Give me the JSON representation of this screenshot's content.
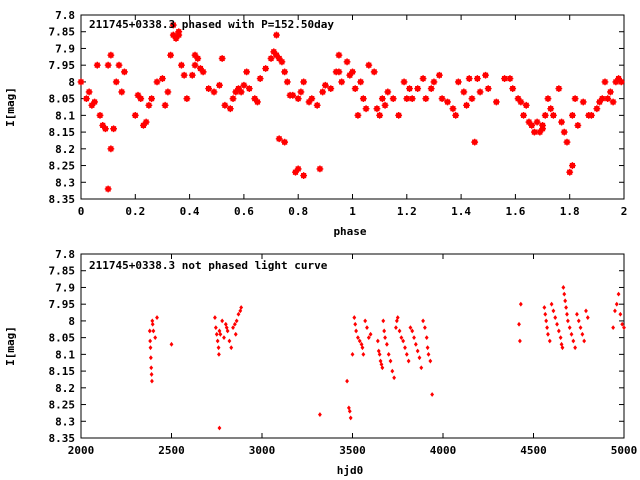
{
  "chart_data": [
    {
      "type": "scatter",
      "title": "211745+0338.3 phased with P=152.50day",
      "xlabel": "phase",
      "ylabel": "I[mag]",
      "xlim": [
        0,
        2
      ],
      "ylim": [
        8.35,
        7.8
      ],
      "y_inverted": true,
      "x_ticks": [
        "0",
        "0.2",
        "0.4",
        "0.6",
        "0.8",
        "1",
        "1.2",
        "1.4",
        "1.6",
        "1.8",
        "2"
      ],
      "y_ticks": [
        "7.8",
        "7.85",
        "7.9",
        "7.95",
        "8",
        "8.05",
        "8.1",
        "8.15",
        "8.2",
        "8.25",
        "8.3",
        "8.35"
      ],
      "grid": false,
      "marker": "filled-star",
      "color": "#ff0000",
      "series": [
        {
          "x": [
            0.0,
            0.02,
            0.03,
            0.04,
            0.05,
            0.06,
            0.07,
            0.08,
            0.09,
            0.1,
            0.11,
            0.12,
            0.13,
            0.14,
            0.15,
            0.16,
            0.2,
            0.21,
            0.22,
            0.23,
            0.24,
            0.26,
            0.28,
            0.3,
            0.31,
            0.32,
            0.33,
            0.34,
            0.35,
            0.36,
            0.37,
            0.38,
            0.39,
            0.41,
            0.42,
            0.43,
            0.44,
            0.45,
            0.47,
            0.49,
            0.51,
            0.52,
            0.53,
            0.55,
            0.56,
            0.57,
            0.58,
            0.59,
            0.6,
            0.61,
            0.62,
            0.64,
            0.65,
            0.66,
            0.68,
            0.7,
            0.71,
            0.72,
            0.73,
            0.74,
            0.75,
            0.76,
            0.77,
            0.78,
            0.8,
            0.81,
            0.82,
            0.84,
            0.85,
            0.87,
            0.89,
            0.9,
            0.92,
            0.94,
            0.95,
            0.96,
            0.98,
            0.99,
            1.0,
            1.01,
            1.03,
            1.04,
            1.06,
            1.08,
            1.09,
            1.1,
            1.11,
            1.12,
            1.13,
            1.15,
            1.17,
            1.19,
            1.2,
            1.21,
            1.22,
            1.24,
            1.26,
            1.27,
            1.29,
            1.3,
            1.32,
            1.33,
            1.35,
            1.37,
            1.38,
            1.39,
            1.41,
            1.42,
            1.44,
            1.46,
            1.47,
            1.49,
            1.5,
            1.53,
            1.56,
            1.58,
            1.59,
            1.61,
            1.62,
            1.63,
            1.64,
            1.65,
            1.66,
            1.67,
            1.68,
            1.69,
            1.7,
            1.71,
            1.72,
            1.73,
            1.74,
            1.76,
            1.77,
            1.78,
            1.79,
            1.8,
            1.81,
            1.82,
            1.83,
            1.85,
            1.87,
            1.88,
            1.9,
            1.91,
            1.92,
            1.93,
            1.94,
            1.95,
            1.96,
            1.97,
            1.98,
            1.99,
            0.1,
            0.11,
            0.72,
            0.73,
            0.75,
            0.79,
            0.8,
            0.82,
            0.88,
            1.7,
            1.81,
            0.34,
            0.36,
            1.02,
            1.05,
            1.43,
            1.45,
            0.95,
            0.25,
            0.42
          ],
          "y": [
            8.0,
            8.05,
            8.03,
            8.07,
            8.06,
            7.95,
            8.1,
            8.13,
            8.14,
            7.95,
            7.92,
            8.14,
            8.0,
            7.95,
            8.03,
            7.97,
            8.1,
            8.04,
            8.05,
            8.13,
            8.12,
            8.05,
            8.0,
            7.99,
            8.07,
            8.03,
            7.92,
            7.86,
            7.87,
            7.86,
            7.95,
            7.98,
            8.05,
            7.98,
            7.95,
            7.93,
            7.96,
            7.97,
            8.02,
            8.03,
            8.01,
            7.93,
            8.07,
            8.08,
            8.05,
            8.03,
            8.02,
            8.03,
            8.01,
            7.97,
            8.02,
            8.05,
            8.06,
            7.99,
            7.96,
            7.93,
            7.91,
            7.92,
            7.93,
            7.94,
            7.97,
            8.0,
            8.04,
            8.04,
            8.05,
            8.03,
            8.0,
            8.06,
            8.05,
            8.07,
            8.03,
            8.01,
            8.02,
            7.97,
            7.97,
            8.0,
            7.94,
            7.98,
            7.97,
            8.02,
            8.0,
            8.05,
            7.95,
            7.97,
            8.08,
            8.1,
            8.05,
            8.07,
            8.03,
            8.05,
            8.1,
            8.0,
            8.05,
            8.02,
            8.05,
            8.02,
            7.99,
            8.05,
            8.02,
            8.0,
            7.98,
            8.05,
            8.06,
            8.08,
            8.1,
            8.0,
            8.03,
            8.07,
            8.05,
            7.99,
            8.03,
            7.98,
            8.02,
            8.06,
            7.99,
            7.99,
            8.02,
            8.05,
            8.06,
            8.1,
            8.07,
            8.12,
            8.13,
            8.15,
            8.12,
            8.15,
            8.13,
            8.1,
            8.05,
            8.08,
            8.1,
            8.02,
            8.12,
            8.15,
            8.18,
            8.27,
            8.1,
            8.05,
            8.13,
            8.06,
            8.1,
            8.1,
            8.08,
            8.06,
            8.05,
            8.0,
            8.05,
            8.03,
            8.06,
            8.0,
            7.99,
            8.0,
            8.32,
            8.2,
            7.86,
            8.17,
            8.18,
            8.27,
            8.26,
            8.28,
            8.26,
            8.14,
            8.25,
            7.83,
            7.85,
            8.1,
            8.08,
            7.99,
            8.18,
            7.92,
            8.07,
            7.92
          ]
        }
      ]
    },
    {
      "type": "scatter",
      "title": "211745+0338.3 not phased light curve",
      "xlabel": "hjd0",
      "ylabel": "I[mag]",
      "xlim": [
        2000,
        5000
      ],
      "ylim": [
        8.35,
        7.8
      ],
      "y_inverted": true,
      "x_ticks": [
        "2000",
        "2500",
        "3000",
        "3500",
        "4000",
        "4500",
        "5000"
      ],
      "y_ticks": [
        "7.8",
        "7.85",
        "7.9",
        "7.95",
        "8",
        "8.05",
        "8.1",
        "8.15",
        "8.2",
        "8.25",
        "8.3",
        "8.35"
      ],
      "grid": false,
      "marker": "filled-diamond",
      "color": "#ff0000",
      "series": [
        {
          "x": [
            2380,
            2382,
            2384,
            2386,
            2388,
            2390,
            2392,
            2394,
            2396,
            2400,
            2410,
            2420,
            2500,
            2740,
            2745,
            2750,
            2755,
            2760,
            2762,
            2765,
            2770,
            2780,
            2790,
            2800,
            2805,
            2810,
            2820,
            2830,
            2840,
            2850,
            2855,
            2860,
            2870,
            2880,
            2885,
            2765,
            3320,
            3470,
            3480,
            3485,
            3490,
            3500,
            3510,
            3515,
            3520,
            3530,
            3540,
            3550,
            3555,
            3560,
            3570,
            3580,
            3590,
            3600,
            3640,
            3645,
            3650,
            3655,
            3660,
            3665,
            3670,
            3675,
            3680,
            3690,
            3700,
            3710,
            3720,
            3730,
            3740,
            3745,
            3750,
            3760,
            3770,
            3780,
            3790,
            3800,
            3810,
            3820,
            3830,
            3840,
            3850,
            3860,
            3870,
            3880,
            3890,
            3900,
            3910,
            3915,
            3920,
            3930,
            3940,
            4420,
            4425,
            4430,
            4560,
            4565,
            4570,
            4575,
            4580,
            4590,
            4600,
            4610,
            4620,
            4630,
            4640,
            4650,
            4655,
            4660,
            4665,
            4670,
            4675,
            4680,
            4685,
            4690,
            4700,
            4710,
            4720,
            4730,
            4740,
            4750,
            4760,
            4770,
            4780,
            4790,
            4800,
            4940,
            4950,
            4960,
            4970,
            4980,
            4990,
            5000
          ],
          "y": [
            8.03,
            8.06,
            8.08,
            8.11,
            8.14,
            8.16,
            8.18,
            8.0,
            8.01,
            8.03,
            8.05,
            7.99,
            8.07,
            7.99,
            8.02,
            8.04,
            8.06,
            8.08,
            8.1,
            8.32,
            8.04,
            8.0,
            8.05,
            8.01,
            8.02,
            8.03,
            8.06,
            8.08,
            8.02,
            8.01,
            8.04,
            8.0,
            7.98,
            7.97,
            7.96,
            8.03,
            8.28,
            8.18,
            8.26,
            8.27,
            8.29,
            8.1,
            7.99,
            8.01,
            8.03,
            8.05,
            8.06,
            8.07,
            8.08,
            8.1,
            8.0,
            8.02,
            8.05,
            8.04,
            8.06,
            8.09,
            8.1,
            8.12,
            8.13,
            8.14,
            8.0,
            8.03,
            8.05,
            8.07,
            8.1,
            8.12,
            8.15,
            8.17,
            8.02,
            8.0,
            7.99,
            8.03,
            8.05,
            8.06,
            8.08,
            8.1,
            8.12,
            8.02,
            8.03,
            8.05,
            8.07,
            8.09,
            8.11,
            8.14,
            8.0,
            8.02,
            8.05,
            8.08,
            8.1,
            8.12,
            8.22,
            8.01,
            8.06,
            7.95,
            7.96,
            7.98,
            8.0,
            8.02,
            8.04,
            8.06,
            7.95,
            7.97,
            7.99,
            8.01,
            8.03,
            8.05,
            8.07,
            8.08,
            7.9,
            7.92,
            7.94,
            7.96,
            7.98,
            8.0,
            8.02,
            8.04,
            8.06,
            8.08,
            7.98,
            8.0,
            8.02,
            8.04,
            8.06,
            7.97,
            7.99,
            8.02,
            7.97,
            7.95,
            7.92,
            7.98,
            8.01,
            8.02
          ]
        }
      ]
    }
  ]
}
